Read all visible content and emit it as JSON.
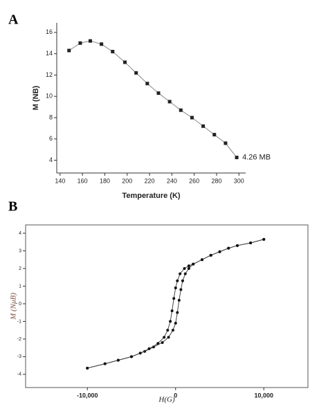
{
  "chart_data": [
    {
      "type": "line",
      "panel_label": "A",
      "x_label": "Temperature (K)",
      "y_label": "M (NB)",
      "annotation": "4.26 MB",
      "xlim": [
        137,
        306
      ],
      "xticks": [
        140,
        160,
        180,
        200,
        220,
        240,
        260,
        280,
        300
      ],
      "ylim": [
        2.8,
        16.9
      ],
      "yticks": [
        4,
        6,
        8,
        10,
        12,
        14,
        16
      ],
      "series": [
        {
          "color": "#222222",
          "line_color": "#888888",
          "marker": "square",
          "x": [
            148,
            158,
            167,
            177,
            187,
            198,
            208,
            218,
            228,
            238,
            248,
            258,
            268,
            278,
            288,
            298
          ],
          "values": [
            14.3,
            15.0,
            15.2,
            14.9,
            14.2,
            13.2,
            12.2,
            11.2,
            10.3,
            9.5,
            8.7,
            8.0,
            7.2,
            6.4,
            5.6,
            4.26
          ]
        }
      ]
    },
    {
      "type": "line",
      "panel_label": "B",
      "x_label": "H(G)",
      "y_label": "M (NμB)",
      "xlim": [
        -17000,
        15000
      ],
      "xticks": [
        {
          "value": -10000,
          "label": "-10,000"
        },
        0,
        {
          "value": 10000,
          "label": "10,000"
        }
      ],
      "ylim": [
        -4.75,
        4.47
      ],
      "yticks": [
        -4,
        -3,
        -2,
        -1,
        0,
        1,
        2,
        3,
        4
      ],
      "series": [
        {
          "color": "#111111",
          "line_color": "#444444",
          "marker": "circle",
          "x": [
            -10000,
            -8000,
            -6500,
            -5000,
            -3500,
            -2500,
            -1500,
            -800,
            -300,
            0,
            200,
            400,
            600,
            800,
            1100,
            1500,
            2000,
            3000,
            4000,
            5000,
            6000,
            7000,
            8500,
            10000
          ],
          "values": [
            -3.65,
            -3.4,
            -3.2,
            -3.0,
            -2.7,
            -2.45,
            -2.2,
            -1.9,
            -1.5,
            -1.1,
            -0.5,
            0.2,
            0.8,
            1.3,
            1.7,
            2.0,
            2.25,
            2.5,
            2.75,
            2.95,
            3.15,
            3.3,
            3.45,
            3.65
          ]
        },
        {
          "color": "#111111",
          "line_color": "#444444",
          "marker": "circle",
          "x": [
            10000,
            8500,
            7000,
            6000,
            5000,
            4000,
            3000,
            2000,
            1500,
            1000,
            500,
            200,
            0,
            -200,
            -400,
            -600,
            -900,
            -1300,
            -2000,
            -3000,
            -4000,
            -5000,
            -6500,
            -8000,
            -10000
          ],
          "values": [
            3.65,
            3.45,
            3.3,
            3.15,
            2.95,
            2.75,
            2.5,
            2.25,
            2.15,
            2.0,
            1.7,
            1.3,
            0.9,
            0.3,
            -0.4,
            -1.0,
            -1.5,
            -1.9,
            -2.25,
            -2.55,
            -2.8,
            -3.0,
            -3.2,
            -3.4,
            -3.65
          ]
        }
      ]
    }
  ]
}
